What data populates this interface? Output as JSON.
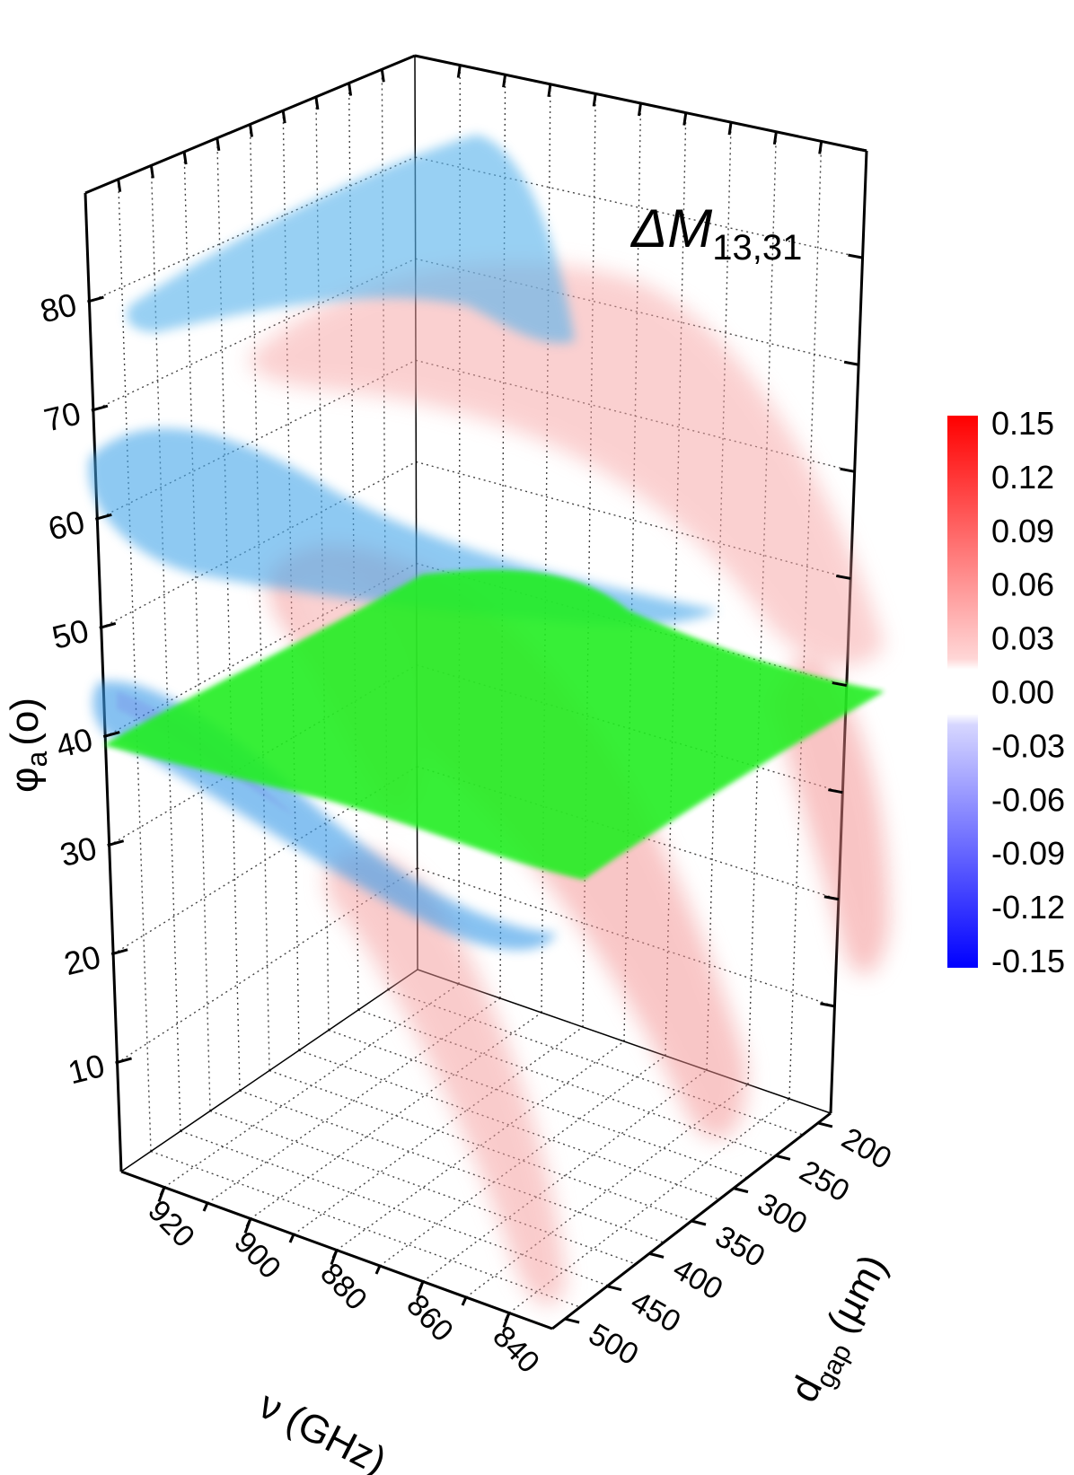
{
  "chart_data": {
    "type": "3d-volume",
    "title": "ΔM",
    "title_subscript": "13,31",
    "axes": {
      "z": {
        "label": "φ",
        "label_subscript": "a",
        "label_unit": "(o)",
        "ticks": [
          "80",
          "70",
          "60",
          "50",
          "40",
          "30",
          "20",
          "10"
        ],
        "range": [
          0,
          90
        ]
      },
      "x": {
        "label": "ν (GHz)",
        "ticks": [
          "920",
          "900",
          "880",
          "860",
          "840"
        ],
        "range": [
          830,
          930
        ]
      },
      "y": {
        "label": "d",
        "label_subscript": "gap",
        "label_unit": " (µm)",
        "ticks": [
          "200",
          "250",
          "300",
          "350",
          "400",
          "450",
          "500"
        ],
        "range": [
          185,
          515
        ]
      }
    },
    "colorbar": {
      "ticks": [
        "0.15",
        "0.12",
        "0.09",
        "0.06",
        "0.03",
        "0.00",
        "-0.03",
        "-0.06",
        "-0.09",
        "-0.12",
        "-0.15"
      ],
      "range": [
        -0.15,
        0.15
      ],
      "positive_color": "#ff0000",
      "negative_color": "#0000ff",
      "zero_color": "#ffffff"
    },
    "surface_colors": {
      "plane": "#22ee22",
      "positive_lobes": "#f08080",
      "negative_lobes": "#5ab4ec"
    }
  }
}
